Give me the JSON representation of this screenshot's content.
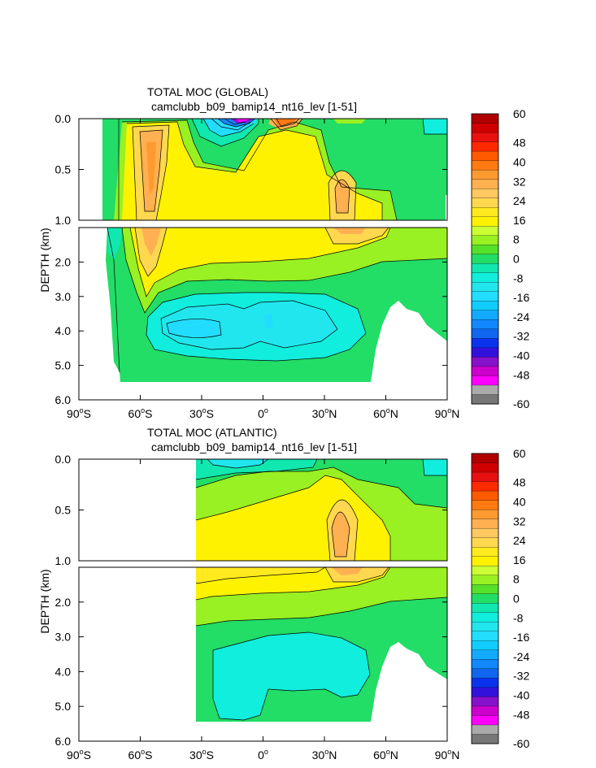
{
  "chart_data": [
    {
      "type": "heatmap",
      "id": "global",
      "title": "TOTAL MOC (GLOBAL)",
      "subtitle": "camclubb_b09_bamip14_nt16_lev [1-51]",
      "ylabel": "DEPTH (km)",
      "xlabel": "",
      "xlim": [
        -90,
        90
      ],
      "x_ticks": [
        {
          "value": -90,
          "deg": "90",
          "hemi": "S"
        },
        {
          "value": -60,
          "deg": "60",
          "hemi": "S"
        },
        {
          "value": -30,
          "deg": "30",
          "hemi": "S"
        },
        {
          "value": 0,
          "deg": "0",
          "hemi": ""
        },
        {
          "value": 30,
          "deg": "30",
          "hemi": "N"
        },
        {
          "value": 60,
          "deg": "60",
          "hemi": "N"
        },
        {
          "value": 90,
          "deg": "90",
          "hemi": "N"
        }
      ],
      "upper_panel": {
        "ylim": [
          0,
          1.0
        ],
        "ticks": [
          {
            "value": 0,
            "label": "0.0"
          },
          {
            "value": 0.5,
            "label": "0.5"
          },
          {
            "value": 1.0,
            "label": "1.0"
          }
        ]
      },
      "lower_panel": {
        "ylim": [
          1.0,
          6.0
        ],
        "ticks": [
          {
            "value": 2,
            "label": "2.0"
          },
          {
            "value": 3,
            "label": "3.0"
          },
          {
            "value": 4,
            "label": "4.0"
          },
          {
            "value": 5,
            "label": "5.0"
          },
          {
            "value": 6,
            "label": "6.0"
          }
        ]
      },
      "data_lat_range": [
        -78,
        90
      ],
      "features": [
        {
          "name": "southern ocean deep cell",
          "lat": -48,
          "depth_km": [
            0.1,
            2.5
          ],
          "value": 28
        },
        {
          "name": "near-equator surface negative cell",
          "lat": -12,
          "depth_km": [
            0,
            0.15
          ],
          "value": -50
        },
        {
          "name": "near-equator surface positive cell",
          "lat": 12,
          "depth_km": [
            0,
            0.2
          ],
          "value": 36
        },
        {
          "name": "north atlantic overturning cell",
          "lat": 37,
          "depth_km": [
            0.4,
            1.6
          ],
          "value": 24
        },
        {
          "name": "bottom water negative cell",
          "lat": -30,
          "depth_km": [
            3.2,
            4.6
          ],
          "value": -12
        }
      ]
    },
    {
      "type": "heatmap",
      "id": "atlantic",
      "title": "TOTAL MOC (ATLANTIC)",
      "subtitle": "camclubb_b09_bamip14_nt16_lev [1-51]",
      "ylabel": "DEPTH (km)",
      "xlabel": "",
      "xlim": [
        -90,
        90
      ],
      "x_ticks": [
        {
          "value": -90,
          "deg": "90",
          "hemi": "S"
        },
        {
          "value": -60,
          "deg": "60",
          "hemi": "S"
        },
        {
          "value": -30,
          "deg": "30",
          "hemi": "S"
        },
        {
          "value": 0,
          "deg": "0",
          "hemi": ""
        },
        {
          "value": 30,
          "deg": "30",
          "hemi": "N"
        },
        {
          "value": 60,
          "deg": "60",
          "hemi": "N"
        },
        {
          "value": 90,
          "deg": "90",
          "hemi": "N"
        }
      ],
      "upper_panel": {
        "ylim": [
          0,
          1.0
        ],
        "ticks": [
          {
            "value": 0,
            "label": "0.0"
          },
          {
            "value": 0.5,
            "label": "0.5"
          },
          {
            "value": 1.0,
            "label": "1.0"
          }
        ]
      },
      "lower_panel": {
        "ylim": [
          1.0,
          6.0
        ],
        "ticks": [
          {
            "value": 2,
            "label": "2.0"
          },
          {
            "value": 3,
            "label": "3.0"
          },
          {
            "value": 4,
            "label": "4.0"
          },
          {
            "value": 5,
            "label": "5.0"
          },
          {
            "value": 6,
            "label": "6.0"
          }
        ]
      },
      "data_lat_range": [
        -34,
        90
      ],
      "features": [
        {
          "name": "north atlantic overturning cell",
          "lat": 37,
          "depth_km": [
            0.3,
            1.6
          ],
          "value": 24
        },
        {
          "name": "upper cell",
          "lat": 10,
          "depth_km": [
            0.5,
            2.0
          ],
          "value": 16
        },
        {
          "name": "surface negative band",
          "lat": -10,
          "depth_km": [
            0,
            0.1
          ],
          "value": -6
        }
      ]
    }
  ],
  "colorbar": {
    "levels": [
      -60,
      -56,
      -52,
      -48,
      -44,
      -40,
      -36,
      -32,
      -28,
      -24,
      -20,
      -16,
      -12,
      -8,
      -4,
      0,
      4,
      8,
      12,
      16,
      20,
      24,
      28,
      32,
      36,
      40,
      44,
      48,
      52,
      56,
      60
    ],
    "labels": [
      "60",
      "48",
      "40",
      "32",
      "24",
      "16",
      "8",
      "0",
      "-8",
      "-16",
      "-24",
      "-32",
      "-40",
      "-48",
      "-60"
    ],
    "label_values": [
      60,
      48,
      40,
      32,
      24,
      16,
      8,
      0,
      -8,
      -16,
      -24,
      -32,
      -40,
      -48,
      -60
    ],
    "colors_top_to_bottom": [
      "#b00000",
      "#d00000",
      "#e81010",
      "#ff2a00",
      "#ff5a00",
      "#ff7a10",
      "#ff9a30",
      "#ffb050",
      "#ffc860",
      "#ffd850",
      "#ffea20",
      "#fff200",
      "#ccff33",
      "#99f022",
      "#55e02a",
      "#22dd66",
      "#11e8b0",
      "#11eedd",
      "#22e6ee",
      "#22ddff",
      "#11ccff",
      "#11aaff",
      "#1188ff",
      "#1066ee",
      "#0b33ee",
      "#3311dd",
      "#8811cc",
      "#cc00cc",
      "#ff00ff",
      "#aaaaaa",
      "#777777"
    ]
  }
}
